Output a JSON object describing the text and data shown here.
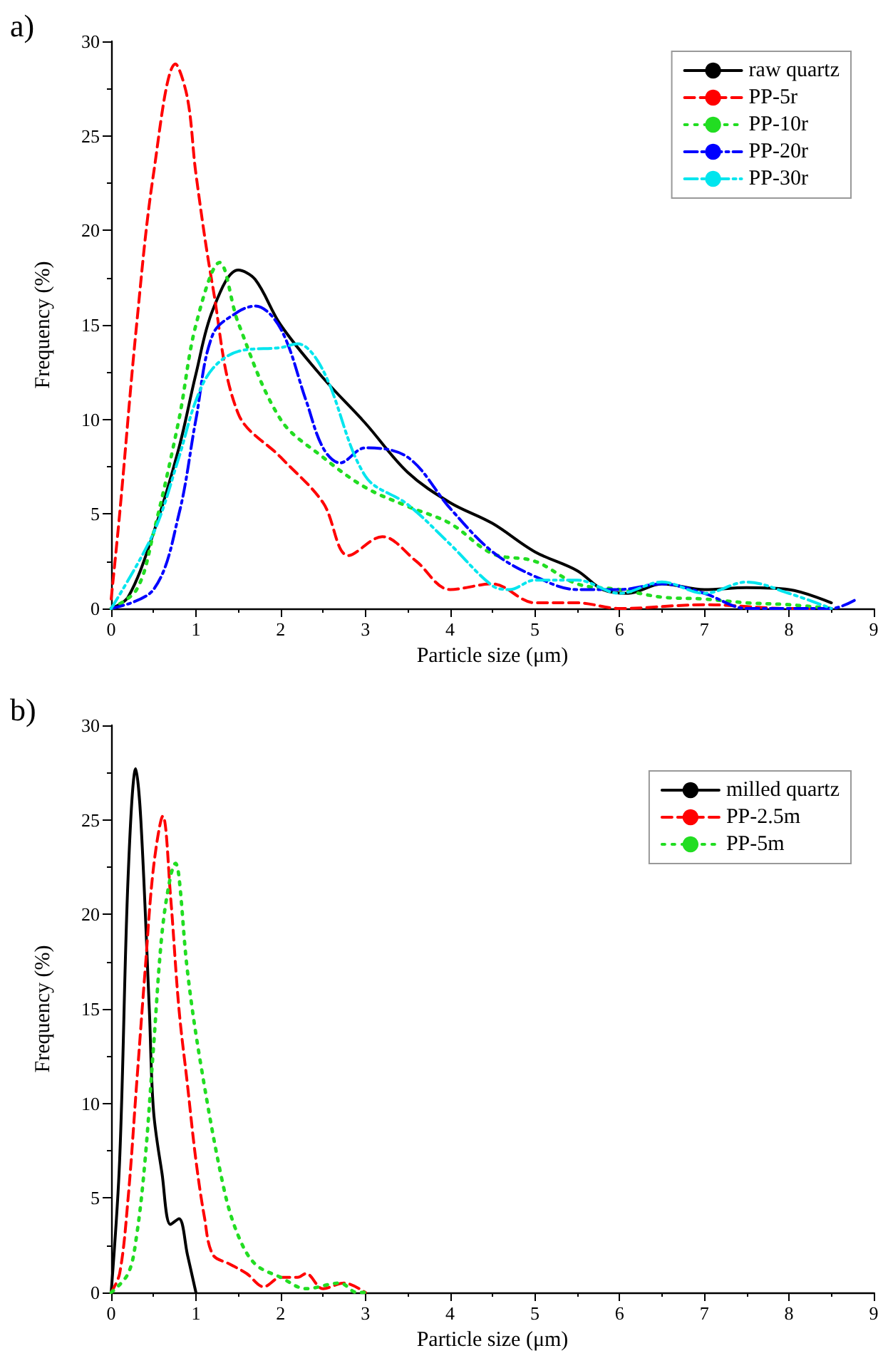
{
  "chart_data": [
    {
      "type": "line",
      "title": "a)",
      "xlabel": "Particle size (μm)",
      "ylabel": "Frequency (%)",
      "xlim": [
        0,
        9
      ],
      "xticks": [
        0,
        1,
        2,
        3,
        4,
        5,
        6,
        7,
        8,
        9
      ],
      "ylim": [
        0,
        30
      ],
      "yticks": [
        0,
        5,
        10,
        15,
        20,
        25,
        30
      ],
      "legend": "top right",
      "marker": "none",
      "series": [
        {
          "name": "raw quartz",
          "color": "#000000",
          "line_style": "solid",
          "x": [
            0,
            0.2,
            0.5,
            0.8,
            1.0,
            1.2,
            1.5,
            1.7,
            2.0,
            2.5,
            3.0,
            3.5,
            4.0,
            4.5,
            5.0,
            5.5,
            5.8,
            6.1,
            6.5,
            7.0,
            7.5,
            8.0,
            8.5
          ],
          "values": [
            0,
            0.6,
            4,
            8.5,
            12.4,
            15.8,
            17.9,
            17.4,
            15,
            12.2,
            9.8,
            7.2,
            5.6,
            4.5,
            3.0,
            2.0,
            1.0,
            0.8,
            1.3,
            1.0,
            1.1,
            1.0,
            0.3
          ]
        },
        {
          "name": "PP-5r",
          "color": "#ff0000",
          "line_style": "dashed",
          "x": [
            0,
            0.1,
            0.3,
            0.5,
            0.76,
            0.9,
            1.0,
            1.2,
            1.5,
            2.0,
            2.5,
            2.8,
            3.2,
            3.6,
            4.0,
            4.5,
            5.0,
            5.5,
            6.0,
            7.0,
            8.0,
            8.5
          ],
          "values": [
            0.5,
            5,
            15,
            23,
            28.8,
            27,
            23,
            17,
            10.3,
            8,
            5.6,
            2.8,
            3.8,
            2.5,
            1,
            1.3,
            0.3,
            0.3,
            0,
            0.2,
            0,
            0
          ]
        },
        {
          "name": "PP-10r",
          "color": "#22dd22",
          "line_style": "dotted",
          "x": [
            0,
            0.3,
            0.5,
            0.8,
            1.0,
            1.28,
            1.5,
            2.0,
            2.5,
            3.0,
            3.5,
            4.0,
            4.5,
            5.0,
            5.5,
            6.0,
            6.5,
            7.0,
            7.5,
            8.0,
            8.5
          ],
          "values": [
            0,
            1,
            4,
            10,
            15,
            18.3,
            15.1,
            10,
            8,
            6.4,
            5.4,
            4.5,
            2.9,
            2.5,
            1.3,
            1,
            0.6,
            0.5,
            0.3,
            0.2,
            0
          ]
        },
        {
          "name": "PP-20r",
          "color": "#0000ff",
          "line_style": "dashdot",
          "x": [
            0,
            0.5,
            0.8,
            1.0,
            1.2,
            1.5,
            1.7,
            2.0,
            2.3,
            2.5,
            2.7,
            3.0,
            3.5,
            4.0,
            4.5,
            5.0,
            5.5,
            6.0,
            6.5,
            7.0,
            7.5,
            8.0,
            8.5,
            8.8
          ],
          "values": [
            0,
            1,
            5,
            10,
            14.5,
            15.7,
            16,
            14.8,
            11,
            8.5,
            7.7,
            8.5,
            8,
            5.3,
            3,
            1.7,
            1,
            1,
            1.3,
            0.8,
            0,
            0,
            0,
            0.5
          ]
        },
        {
          "name": "PP-30r",
          "color": "#00e5ee",
          "line_style": "dashdotdot",
          "x": [
            0,
            0.5,
            0.8,
            1.0,
            1.2,
            1.5,
            2.0,
            2.2,
            2.5,
            3.0,
            3.5,
            4.0,
            4.5,
            4.7,
            5.0,
            5.5,
            6.0,
            6.5,
            7.0,
            7.5,
            8.0,
            8.5
          ],
          "values": [
            0,
            4,
            8,
            11,
            12.7,
            13.6,
            13.8,
            14,
            12.6,
            7,
            5.5,
            3.4,
            1.2,
            1,
            1.5,
            1.5,
            0.8,
            1.4,
            0.8,
            1.4,
            0.8,
            0
          ]
        }
      ]
    },
    {
      "type": "line",
      "title": "b)",
      "xlabel": "Particle size (μm)",
      "ylabel": "Frequency (%)",
      "xlim": [
        0,
        9
      ],
      "xticks": [
        0,
        1,
        2,
        3,
        4,
        5,
        6,
        7,
        8,
        9
      ],
      "ylim": [
        0,
        30
      ],
      "yticks": [
        0,
        5,
        10,
        15,
        20,
        25,
        30
      ],
      "legend": "top right",
      "marker": "none",
      "series": [
        {
          "name": "milled quartz",
          "color": "#000000",
          "line_style": "solid",
          "x": [
            0,
            0.1,
            0.2,
            0.29,
            0.35,
            0.45,
            0.5,
            0.6,
            0.7,
            0.8,
            0.9,
            1.0
          ],
          "values": [
            0,
            7,
            22,
            27.7,
            25,
            15,
            9.6,
            6.3,
            3.6,
            3.9,
            2,
            0
          ]
        },
        {
          "name": "PP-2.5m",
          "color": "#ff0000",
          "line_style": "dashed",
          "x": [
            0,
            0.1,
            0.2,
            0.3,
            0.4,
            0.5,
            0.61,
            0.7,
            0.8,
            0.9,
            1.0,
            1.1,
            1.2,
            1.4,
            1.6,
            1.8,
            2.0,
            2.2,
            2.3,
            2.5,
            2.75,
            3.0
          ],
          "values": [
            0,
            1,
            5,
            11,
            17,
            22.5,
            25.2,
            21,
            15,
            11,
            7,
            4,
            2,
            1.5,
            1,
            0.3,
            0.8,
            0.8,
            1,
            0.2,
            0.5,
            0
          ]
        },
        {
          "name": "PP-5m",
          "color": "#22dd22",
          "line_style": "dotted",
          "x": [
            0,
            0.2,
            0.3,
            0.4,
            0.5,
            0.6,
            0.7,
            0.76,
            0.8,
            0.9,
            1.06,
            1.33,
            1.5,
            1.7,
            2.0,
            2.3,
            2.7,
            2.9,
            3.0
          ],
          "values": [
            0,
            1,
            3,
            7,
            13,
            19,
            22,
            22.7,
            22,
            17,
            12,
            5.5,
            3,
            1.5,
            0.8,
            0.2,
            0.5,
            0,
            0
          ]
        }
      ]
    }
  ]
}
